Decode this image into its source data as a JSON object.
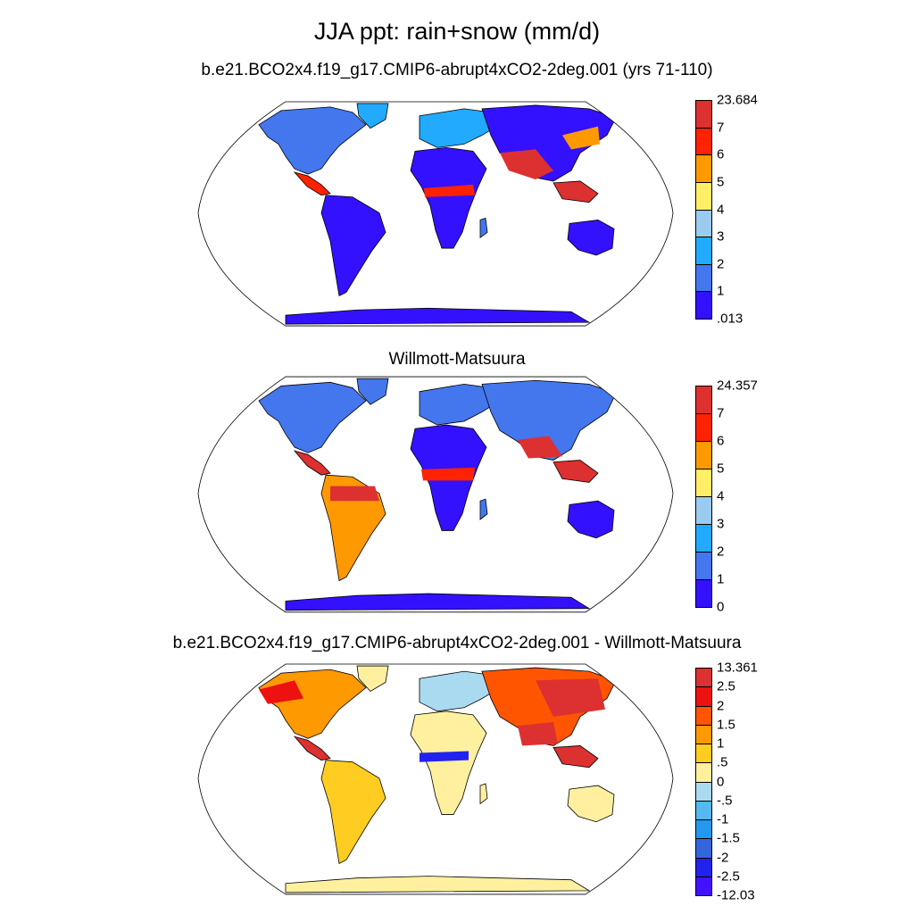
{
  "title": "JJA ppt: rain+snow (mm/d)",
  "panels": [
    {
      "title": "b.e21.BCO2x4.f19_g17.CMIP6-abrupt4xCO2-2deg.001 (yrs 71-110)",
      "colorbar": {
        "labels": [
          "23.684",
          "7",
          "6",
          "5",
          "4",
          "3",
          "2",
          "1",
          ".013"
        ],
        "colors": [
          "#dd3030",
          "#ff2200",
          "#ff9900",
          "#ffee66",
          "#99ccee",
          "#22aaff",
          "#4477ee",
          "#3311ff"
        ]
      }
    },
    {
      "title": "Willmott-Matsuura",
      "colorbar": {
        "labels": [
          "24.357",
          "7",
          "6",
          "5",
          "4",
          "3",
          "2",
          "1",
          "0"
        ],
        "colors": [
          "#dd3030",
          "#ff2200",
          "#ff9900",
          "#ffee66",
          "#99ccee",
          "#22aaff",
          "#4477ee",
          "#3311ff"
        ]
      }
    },
    {
      "title": "b.e21.BCO2x4.f19_g17.CMIP6-abrupt4xCO2-2deg.001 - Willmott-Matsuura",
      "colorbar": {
        "labels": [
          "13.361",
          "2.5",
          "2",
          "1.5",
          "1",
          ".5",
          "0",
          "-.5",
          "-1",
          "-1.5",
          "-2",
          "-2.5",
          "-12.03"
        ],
        "colors": [
          "#dd3030",
          "#ee1111",
          "#ff5500",
          "#ff9900",
          "#ffcc22",
          "#fff0a0",
          "#aadaf0",
          "#55b8f0",
          "#2299ee",
          "#3366dd",
          "#2222ee",
          "#4411ff"
        ]
      }
    }
  ]
}
